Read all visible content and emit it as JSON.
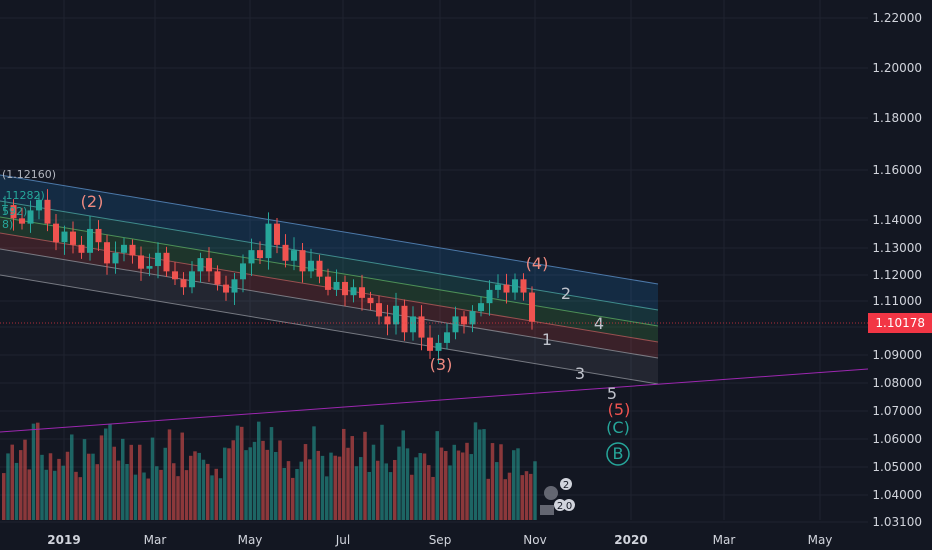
{
  "chart_data": {
    "type": "candlestick",
    "title": "",
    "price_axis": {
      "ticks": [
        "1.22000",
        "1.20000",
        "1.18000",
        "1.16000",
        "1.14000",
        "1.13000",
        "1.12000",
        "1.11000",
        "1.10000",
        "1.09000",
        "1.08000",
        "1.07000",
        "1.06000",
        "1.05000",
        "1.04000",
        "1.03100"
      ],
      "last_price": "1.10178",
      "last_price_color": "#f23645"
    },
    "time_axis": {
      "ticks": [
        "2019",
        "Mar",
        "May",
        "Jul",
        "Sep",
        "Nov",
        "2020",
        "Mar",
        "May"
      ]
    },
    "legend_partial": [
      "(1.12160)",
      ".11282)",
      "592)",
      "8)"
    ],
    "elliott_waves": [
      {
        "label": "(2)",
        "color": "#ef8a80"
      },
      {
        "label": "(3)",
        "color": "#ef8a80"
      },
      {
        "label": "(4)",
        "color": "#ef8a80"
      },
      {
        "label": "(5)",
        "color": "#ef5350"
      },
      {
        "label": "1",
        "color": "#c0c3cc"
      },
      {
        "label": "2",
        "color": "#c0c3cc"
      },
      {
        "label": "3",
        "color": "#c0c3cc"
      },
      {
        "label": "4",
        "color": "#c0c3cc"
      },
      {
        "label": "5",
        "color": "#c0c3cc"
      },
      {
        "label": "(C)",
        "color": "#26a69a"
      },
      {
        "label": "B",
        "color": "#26a69a"
      }
    ],
    "event_badges": [
      "2",
      "2",
      "0"
    ],
    "colors": {
      "background": "#131722",
      "up": "#26a69a",
      "down": "#ef5350",
      "trendline": "#9c27b0",
      "grid": "#1f2330"
    },
    "price_series": {
      "approx_close": [
        1.146,
        1.141,
        1.139,
        1.144,
        1.148,
        1.139,
        1.132,
        1.136,
        1.131,
        1.128,
        1.137,
        1.132,
        1.124,
        1.128,
        1.131,
        1.127,
        1.122,
        1.123,
        1.128,
        1.121,
        1.118,
        1.115,
        1.121,
        1.126,
        1.121,
        1.116,
        1.113,
        1.118,
        1.124,
        1.129,
        1.126,
        1.139,
        1.131,
        1.125,
        1.129,
        1.121,
        1.125,
        1.119,
        1.114,
        1.117,
        1.112,
        1.115,
        1.111,
        1.109,
        1.104,
        1.101,
        1.108,
        1.098,
        1.104,
        1.096,
        1.091,
        1.094,
        1.098,
        1.104,
        1.101,
        1.106,
        1.109,
        1.114,
        1.116,
        1.113,
        1.118,
        1.113,
        1.102
      ]
    }
  }
}
